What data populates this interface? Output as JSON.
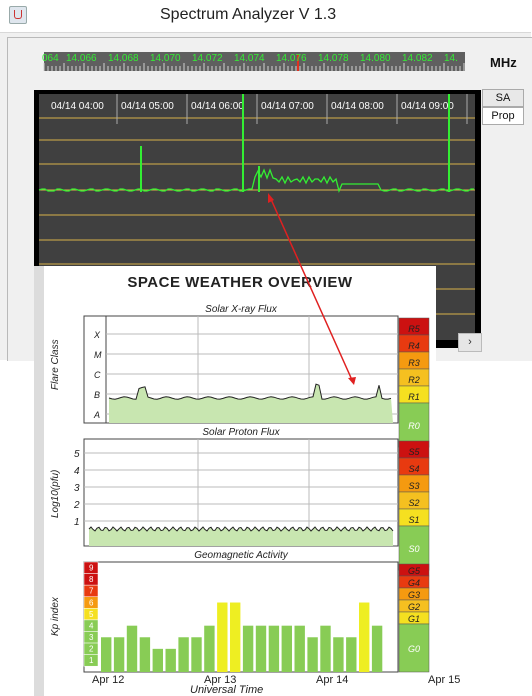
{
  "window": {
    "title": "Spectrum Analyzer V 1.3",
    "unit_label": "MHz",
    "tabs": [
      {
        "label": "SA"
      },
      {
        "label": "Prop"
      }
    ],
    "scroll_arrow": "›"
  },
  "ruler": {
    "labels": [
      "064",
      "14.066",
      "14.068",
      "14.070",
      "14.072",
      "14.074",
      "14.076",
      "14.078",
      "14.080",
      "14.082",
      "14."
    ]
  },
  "waterfall": {
    "time_labels": [
      "04/14 04:00",
      "04/14 05:00",
      "04/14 06:00",
      "04/14 07:00",
      "04/14 08:00",
      "04/14 09:00"
    ]
  },
  "space_weather": {
    "title": "SPACE WEATHER OVERVIEW",
    "xray": {
      "title": "Solar X-ray Flux",
      "ylabel": "Flare Class",
      "classes": [
        "X",
        "M",
        "C",
        "B",
        "A"
      ],
      "scale": [
        "R5",
        "R4",
        "R3",
        "R2",
        "R1",
        "R0"
      ]
    },
    "proton": {
      "title": "Solar Proton Flux",
      "ylabel": "Log10(pfu)",
      "ticks": [
        "5",
        "4",
        "3",
        "2",
        "1"
      ],
      "scale": [
        "S5",
        "S4",
        "S3",
        "S2",
        "S1",
        "S0"
      ]
    },
    "geomag": {
      "title": "Geomagnetic Activity",
      "ylabel": "Kp index",
      "kp_levels": [
        "9",
        "8",
        "7",
        "6",
        "5",
        "4",
        "3",
        "2",
        "1"
      ],
      "scale": [
        "G5",
        "G4",
        "G3",
        "G2",
        "G1",
        "G0"
      ],
      "kp_values": [
        3,
        3,
        4,
        3,
        2,
        2,
        3,
        3,
        4,
        6,
        6,
        4,
        4,
        4,
        4,
        4,
        3,
        4,
        3,
        3,
        6,
        4
      ],
      "x_ticks": [
        "Apr 12",
        "Apr 13",
        "Apr 14",
        "Apr 15"
      ],
      "xlabel": "Universal Time"
    }
  },
  "colors": {
    "trace_green": "#33ee33",
    "waterfall_bg": "#404040",
    "grid_yellow": "#d9b24a",
    "annotation_red": "#e02020",
    "kp_green": "#88cc55",
    "kp_yellow": "#eeee22"
  }
}
